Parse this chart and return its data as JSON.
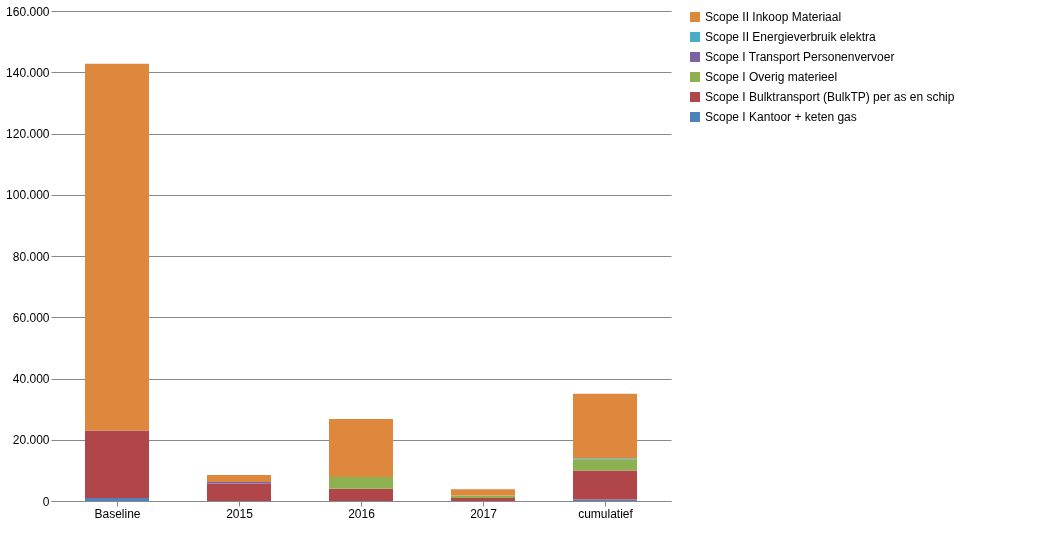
{
  "chart_data": {
    "type": "bar",
    "stacked": true,
    "categories": [
      "Baseline",
      "2015",
      "2016",
      "2017",
      "cumulatief"
    ],
    "series": [
      {
        "name": "Scope I Kantoor + keten gas",
        "color": "#4f81bd",
        "values": [
          1000,
          null,
          null,
          null,
          500
        ]
      },
      {
        "name": "Scope I Bulktransport (BulkTP) per as en schip",
        "color": "#b0464a",
        "values": [
          22000,
          5700,
          4000,
          1000,
          9500
        ]
      },
      {
        "name": "Scope I Overig materieel",
        "color": "#8db050",
        "values": [
          0,
          0,
          3800,
          800,
          3600
        ]
      },
      {
        "name": "Scope I Transport Personenvervoer",
        "color": "#7b62a0",
        "values": [
          null,
          500,
          null,
          null,
          null
        ]
      },
      {
        "name": "Scope II Energieverbruik elektra",
        "color": "#4bacc6",
        "values": [
          null,
          null,
          null,
          null,
          400
        ]
      },
      {
        "name": "Scope II Inkoop Materiaal",
        "color": "#dd883c",
        "values": [
          119800,
          2300,
          19000,
          2000,
          21000
        ]
      }
    ],
    "ylim": [
      0,
      160000
    ],
    "yticks": [
      {
        "value": 0,
        "label": "0"
      },
      {
        "value": 20000,
        "label": "20.000"
      },
      {
        "value": 40000,
        "label": "40.000"
      },
      {
        "value": 60000,
        "label": "60.000"
      },
      {
        "value": 80000,
        "label": "80.000"
      },
      {
        "value": 100000,
        "label": "100.000"
      },
      {
        "value": 120000,
        "label": "120.000"
      },
      {
        "value": 140000,
        "label": "140.000"
      },
      {
        "value": 160000,
        "label": "160.000"
      }
    ],
    "grid": "y",
    "legend": "right"
  }
}
